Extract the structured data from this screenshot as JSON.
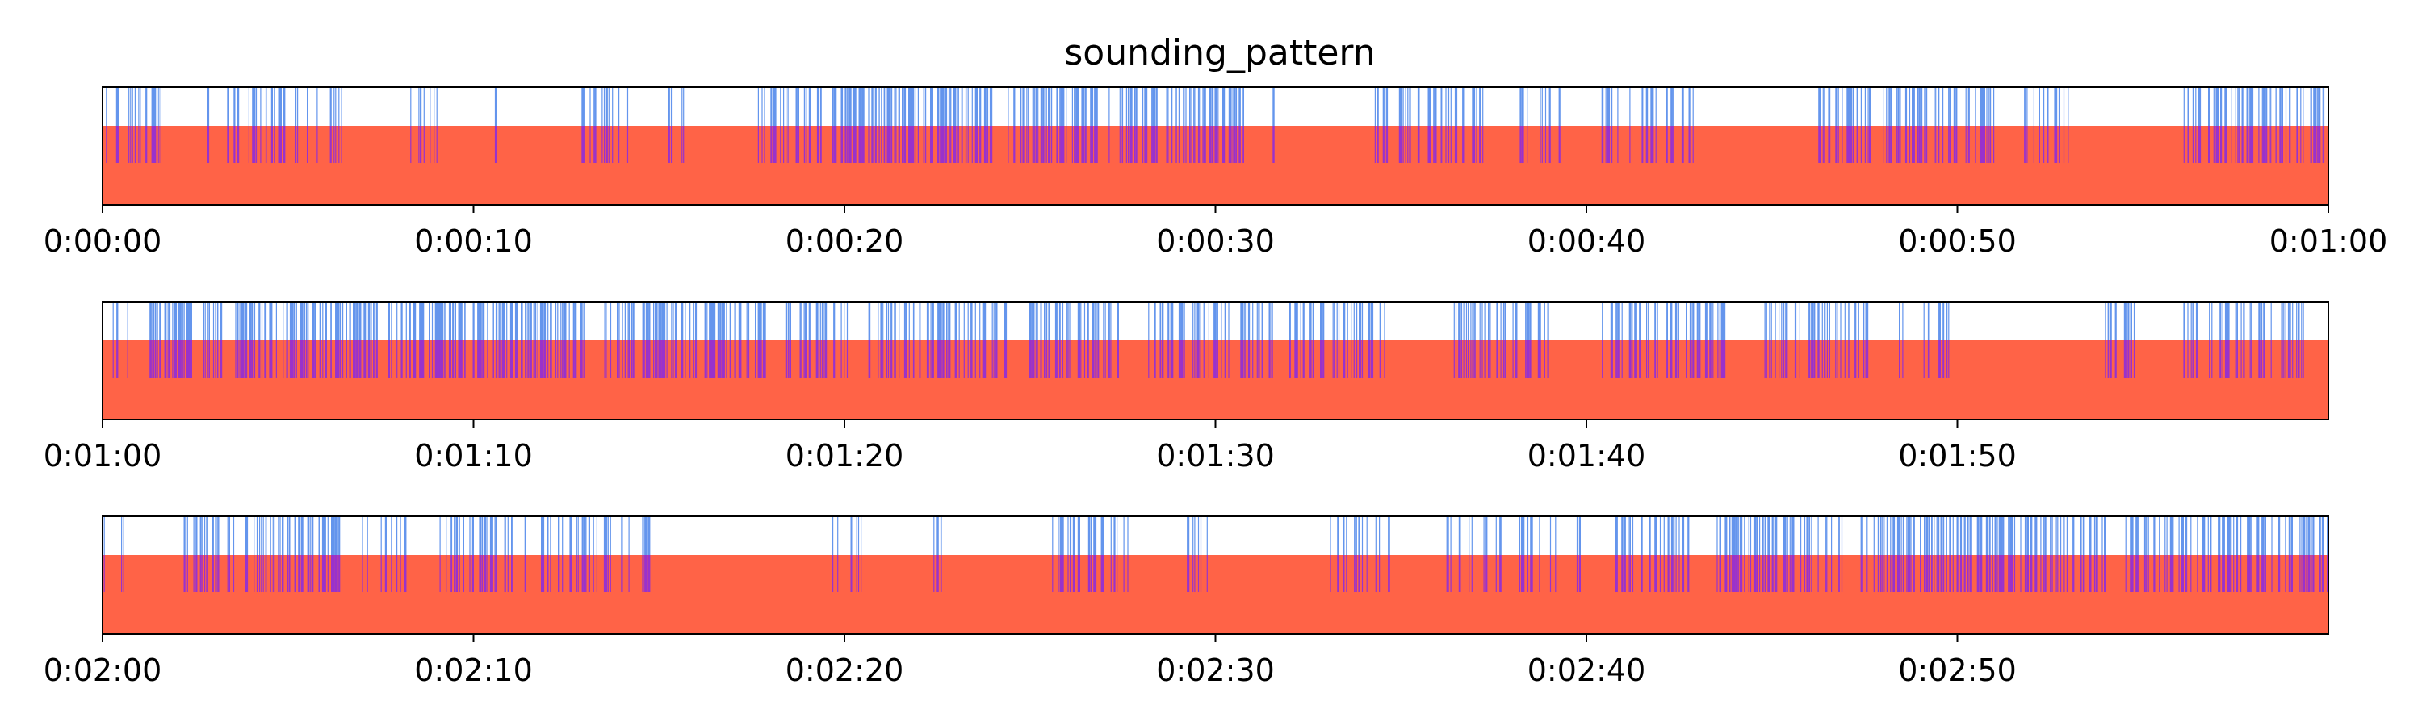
{
  "chart_data": {
    "type": "event-raster",
    "title": "sounding_pattern",
    "xlabel": "",
    "ylabel": "",
    "colors": {
      "background_band": "#ff6347",
      "event_lines": "#6495ed",
      "overlap": "#9932cc",
      "axes": "#000000"
    },
    "grid": false,
    "legend": "none",
    "panels": [
      {
        "xlim": [
          0,
          60
        ],
        "tick_values": [
          0,
          10,
          20,
          30,
          40,
          50,
          60
        ],
        "tick_labels": [
          "0:00:00",
          "0:00:10",
          "0:00:20",
          "0:00:30",
          "0:00:40",
          "0:00:50",
          "0:01:00"
        ],
        "segments": [
          {
            "start": 0.0,
            "end": 0.6,
            "density": 0.8
          },
          {
            "start": 0.6,
            "end": 1.6,
            "density": 1.5
          },
          {
            "start": 2.8,
            "end": 5.8,
            "density": 1.0
          },
          {
            "start": 6.1,
            "end": 6.7,
            "density": 1.0
          },
          {
            "start": 8.3,
            "end": 9.2,
            "density": 0.8
          },
          {
            "start": 10.2,
            "end": 10.8,
            "density": 0.6
          },
          {
            "start": 12.8,
            "end": 14.2,
            "density": 1.0
          },
          {
            "start": 15.2,
            "end": 15.8,
            "density": 0.6
          },
          {
            "start": 17.6,
            "end": 19.5,
            "density": 1.2
          },
          {
            "start": 19.6,
            "end": 22.4,
            "density": 2.4
          },
          {
            "start": 22.5,
            "end": 24.1,
            "density": 2.0
          },
          {
            "start": 24.4,
            "end": 26.9,
            "density": 2.2
          },
          {
            "start": 27.1,
            "end": 30.8,
            "density": 1.8
          },
          {
            "start": 31.2,
            "end": 31.6,
            "density": 0.6
          },
          {
            "start": 34.3,
            "end": 37.3,
            "density": 1.3
          },
          {
            "start": 38.2,
            "end": 39.4,
            "density": 0.9
          },
          {
            "start": 40.4,
            "end": 43.0,
            "density": 1.0
          },
          {
            "start": 46.2,
            "end": 51.0,
            "density": 1.5
          },
          {
            "start": 51.8,
            "end": 53.1,
            "density": 1.0
          },
          {
            "start": 56.1,
            "end": 60.0,
            "density": 1.6
          }
        ]
      },
      {
        "xlim": [
          60,
          120
        ],
        "tick_values": [
          60,
          70,
          80,
          90,
          100,
          110
        ],
        "tick_labels": [
          "0:01:00",
          "0:01:10",
          "0:01:20",
          "0:01:30",
          "0:01:40",
          "0:01:50"
        ],
        "segments": [
          {
            "start": 60.2,
            "end": 60.7,
            "density": 1.0
          },
          {
            "start": 61.2,
            "end": 67.4,
            "density": 2.0
          },
          {
            "start": 67.7,
            "end": 73.0,
            "density": 2.0
          },
          {
            "start": 73.4,
            "end": 78.0,
            "density": 1.8
          },
          {
            "start": 78.4,
            "end": 80.2,
            "density": 1.3
          },
          {
            "start": 80.6,
            "end": 84.4,
            "density": 1.6
          },
          {
            "start": 85.0,
            "end": 87.4,
            "density": 1.8
          },
          {
            "start": 88.2,
            "end": 91.6,
            "density": 1.6
          },
          {
            "start": 92.0,
            "end": 94.6,
            "density": 1.4
          },
          {
            "start": 96.4,
            "end": 99.0,
            "density": 1.6
          },
          {
            "start": 100.4,
            "end": 103.8,
            "density": 1.5
          },
          {
            "start": 104.6,
            "end": 107.6,
            "density": 1.4
          },
          {
            "start": 108.4,
            "end": 109.8,
            "density": 0.8
          },
          {
            "start": 113.6,
            "end": 114.8,
            "density": 0.9
          },
          {
            "start": 116.0,
            "end": 119.4,
            "density": 1.2
          }
        ]
      },
      {
        "xlim": [
          120,
          180
        ],
        "tick_values": [
          120,
          130,
          140,
          150,
          160,
          170
        ],
        "tick_labels": [
          "0:02:00",
          "0:02:10",
          "0:02:20",
          "0:02:30",
          "0:02:40",
          "0:02:50"
        ],
        "segments": [
          {
            "start": 120.0,
            "end": 120.6,
            "density": 0.5
          },
          {
            "start": 122.1,
            "end": 123.6,
            "density": 1.2
          },
          {
            "start": 123.8,
            "end": 126.4,
            "density": 2.0
          },
          {
            "start": 127.0,
            "end": 128.2,
            "density": 1.0
          },
          {
            "start": 128.9,
            "end": 131.4,
            "density": 1.3
          },
          {
            "start": 131.8,
            "end": 134.8,
            "density": 1.2
          },
          {
            "start": 139.6,
            "end": 140.5,
            "density": 1.0
          },
          {
            "start": 142.3,
            "end": 142.9,
            "density": 1.0
          },
          {
            "start": 145.4,
            "end": 147.7,
            "density": 1.2
          },
          {
            "start": 148.8,
            "end": 149.8,
            "density": 0.8
          },
          {
            "start": 152.9,
            "end": 154.8,
            "density": 0.8
          },
          {
            "start": 156.2,
            "end": 157.8,
            "density": 0.9
          },
          {
            "start": 158.2,
            "end": 160.0,
            "density": 0.8
          },
          {
            "start": 160.6,
            "end": 162.8,
            "density": 1.2
          },
          {
            "start": 163.4,
            "end": 167.0,
            "density": 1.6
          },
          {
            "start": 167.4,
            "end": 174.0,
            "density": 1.8
          },
          {
            "start": 174.4,
            "end": 180.0,
            "density": 1.6
          }
        ]
      }
    ]
  }
}
